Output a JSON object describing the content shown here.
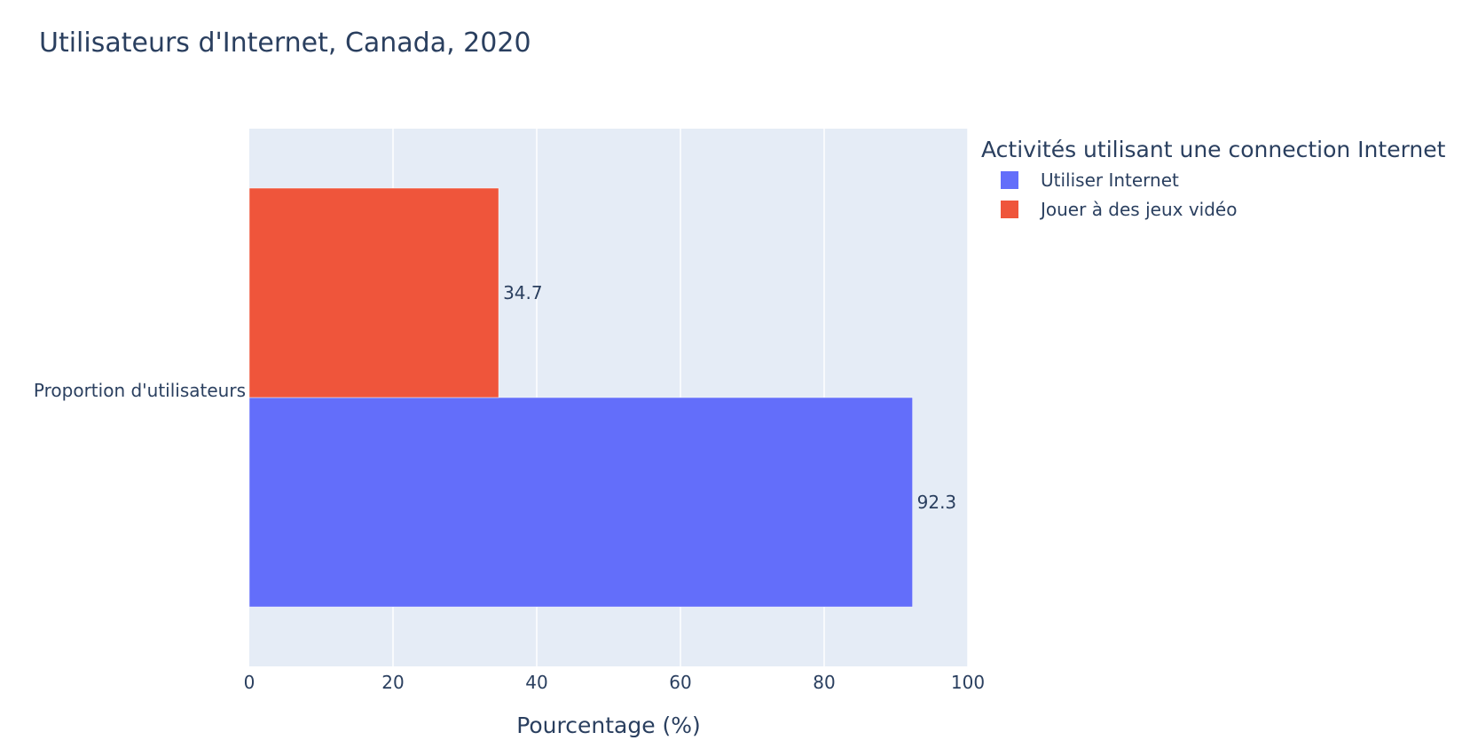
{
  "chart_data": {
    "type": "bar",
    "orientation": "horizontal",
    "barmode": "group",
    "title": "Utilisateurs d'Internet, Canada, 2020",
    "xlabel": "Pourcentage (%)",
    "ylabel": "",
    "categories": [
      "Proportion d'utilisateurs"
    ],
    "xlim": [
      0,
      100
    ],
    "xticks": [
      0,
      20,
      40,
      60,
      80,
      100
    ],
    "grid": true,
    "legend": {
      "title": "Activités utilisant une connection Internet",
      "placement": "top-right-outside"
    },
    "series": [
      {
        "name": "Utiliser Internet",
        "values": [
          92.3
        ],
        "labels": [
          "92.3"
        ],
        "color": "#636efa"
      },
      {
        "name": "Jouer à des jeux vidéo",
        "values": [
          34.7
        ],
        "labels": [
          "34.7"
        ],
        "color": "#ef553b"
      }
    ],
    "colors": {
      "plot_background": "#e5ecf6",
      "grid": "#ffffff",
      "text": "#2a3f5f"
    }
  }
}
